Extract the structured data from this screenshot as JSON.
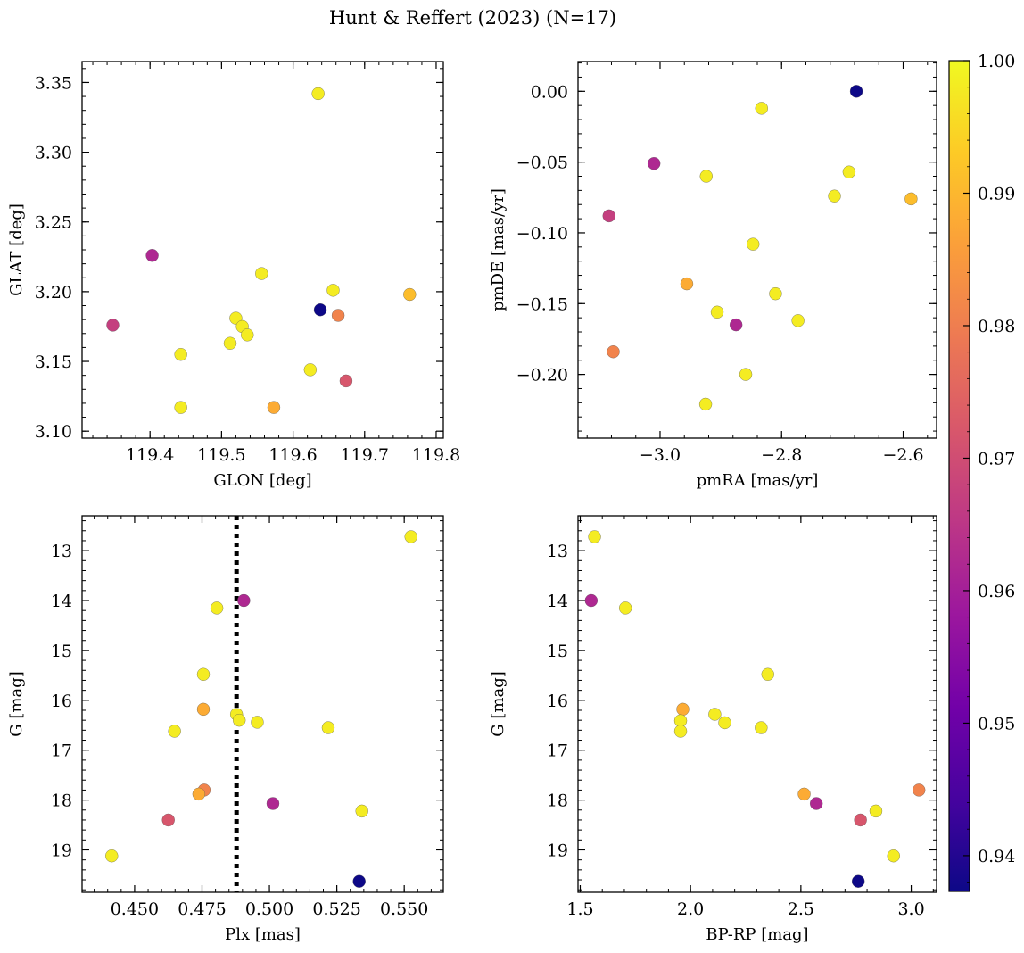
{
  "figure": {
    "title": "Hunt & Reffert (2023) (N=17)"
  },
  "colormap": {
    "name": "plasma",
    "min": 0.9373,
    "max": 1.0,
    "ticks": [
      0.94,
      0.95,
      0.96,
      0.97,
      0.98,
      0.99,
      1.0
    ],
    "tick_labels": [
      "0.94",
      "0.95",
      "0.96",
      "0.97",
      "0.98",
      "0.99",
      "1.00"
    ],
    "stops": [
      "#0d0887",
      "#46039f",
      "#7201a8",
      "#9c179e",
      "#bd3786",
      "#d8576b",
      "#ed7953",
      "#fb9f3a",
      "#fdca26",
      "#f0f921"
    ]
  },
  "chart_data": [
    {
      "type": "scatter",
      "name": "sky-position",
      "xlabel": "GLON [deg]",
      "ylabel": "GLAT [deg]",
      "xlim": [
        119.305,
        119.81
      ],
      "ylim": [
        3.095,
        3.365
      ],
      "y_inverted": false,
      "xticks": [
        119.4,
        119.5,
        119.6,
        119.7,
        119.8
      ],
      "xtick_labels": [
        "119.4",
        "119.5",
        "119.6",
        "119.7",
        "119.8"
      ],
      "yticks": [
        3.1,
        3.15,
        3.2,
        3.25,
        3.3,
        3.35
      ],
      "ytick_labels": [
        "3.10",
        "3.15",
        "3.20",
        "3.25",
        "3.30",
        "3.35"
      ],
      "x_minor_step": 0.02,
      "y_minor_step": 0.01,
      "points": [
        {
          "x": 119.635,
          "y": 3.342,
          "p": 0.998
        },
        {
          "x": 119.403,
          "y": 3.226,
          "p": 0.962
        },
        {
          "x": 119.556,
          "y": 3.213,
          "p": 0.998
        },
        {
          "x": 119.656,
          "y": 3.201,
          "p": 0.998
        },
        {
          "x": 119.763,
          "y": 3.198,
          "p": 0.991
        },
        {
          "x": 119.638,
          "y": 3.187,
          "p": 0.9373
        },
        {
          "x": 119.663,
          "y": 3.183,
          "p": 0.981
        },
        {
          "x": 119.52,
          "y": 3.181,
          "p": 0.998
        },
        {
          "x": 119.348,
          "y": 3.176,
          "p": 0.967
        },
        {
          "x": 119.529,
          "y": 3.175,
          "p": 0.998
        },
        {
          "x": 119.536,
          "y": 3.169,
          "p": 0.998
        },
        {
          "x": 119.512,
          "y": 3.163,
          "p": 0.998
        },
        {
          "x": 119.443,
          "y": 3.155,
          "p": 0.998
        },
        {
          "x": 119.624,
          "y": 3.144,
          "p": 0.998
        },
        {
          "x": 119.674,
          "y": 3.136,
          "p": 0.972
        },
        {
          "x": 119.443,
          "y": 3.117,
          "p": 0.998
        },
        {
          "x": 119.573,
          "y": 3.117,
          "p": 0.988
        }
      ]
    },
    {
      "type": "scatter",
      "name": "proper-motion",
      "xlabel": "pmRA [mas/yr]",
      "ylabel": "pmDE [mas/yr]",
      "xlim": [
        -3.135,
        -2.545
      ],
      "ylim": [
        -0.245,
        0.021
      ],
      "y_inverted": false,
      "xticks": [
        -3.0,
        -2.8,
        -2.6
      ],
      "xtick_labels": [
        "−3.0",
        "−2.8",
        "−2.6"
      ],
      "yticks": [
        0.0,
        -0.05,
        -0.1,
        -0.15,
        -0.2
      ],
      "ytick_labels": [
        "0.00",
        "−0.05",
        "−0.10",
        "−0.15",
        "−0.20"
      ],
      "x_minor_step": 0.04,
      "y_minor_step": 0.01,
      "points": [
        {
          "x": -2.677,
          "y": 0.0,
          "p": 0.9373
        },
        {
          "x": -2.833,
          "y": -0.012,
          "p": 0.998
        },
        {
          "x": -3.01,
          "y": -0.051,
          "p": 0.962
        },
        {
          "x": -2.689,
          "y": -0.057,
          "p": 0.998
        },
        {
          "x": -2.924,
          "y": -0.06,
          "p": 0.998
        },
        {
          "x": -2.713,
          "y": -0.074,
          "p": 0.998
        },
        {
          "x": -2.587,
          "y": -0.076,
          "p": 0.991
        },
        {
          "x": -3.084,
          "y": -0.088,
          "p": 0.967
        },
        {
          "x": -2.847,
          "y": -0.108,
          "p": 0.998
        },
        {
          "x": -2.956,
          "y": -0.136,
          "p": 0.988
        },
        {
          "x": -2.81,
          "y": -0.143,
          "p": 0.998
        },
        {
          "x": -2.906,
          "y": -0.156,
          "p": 0.998
        },
        {
          "x": -2.773,
          "y": -0.162,
          "p": 0.998
        },
        {
          "x": -2.875,
          "y": -0.165,
          "p": 0.962
        },
        {
          "x": -3.077,
          "y": -0.184,
          "p": 0.981
        },
        {
          "x": -2.859,
          "y": -0.2,
          "p": 0.998
        },
        {
          "x": -2.925,
          "y": -0.221,
          "p": 0.998
        }
      ]
    },
    {
      "type": "scatter",
      "name": "parallax-vs-magnitude",
      "xlabel": "Plx [mas]",
      "ylabel": "G [mag]",
      "xlim": [
        0.4305,
        0.5645
      ],
      "ylim": [
        12.3,
        19.85
      ],
      "y_inverted": true,
      "xticks": [
        0.45,
        0.475,
        0.5,
        0.525,
        0.55
      ],
      "xtick_labels": [
        "0.450",
        "0.475",
        "0.500",
        "0.525",
        "0.550"
      ],
      "yticks": [
        13,
        14,
        15,
        16,
        17,
        18,
        19
      ],
      "ytick_labels": [
        "13",
        "14",
        "15",
        "16",
        "17",
        "18",
        "19"
      ],
      "x_minor_step": 0.005,
      "y_minor_step": 0.2,
      "reference_line": {
        "x": 0.4878,
        "style": "dotted",
        "color": "#000000"
      },
      "points": [
        {
          "x": 0.5525,
          "y": 12.72,
          "p": 0.998
        },
        {
          "x": 0.4905,
          "y": 14.0,
          "p": 0.962
        },
        {
          "x": 0.4805,
          "y": 14.15,
          "p": 0.998
        },
        {
          "x": 0.4755,
          "y": 15.48,
          "p": 0.998
        },
        {
          "x": 0.4755,
          "y": 16.18,
          "p": 0.988
        },
        {
          "x": 0.4878,
          "y": 16.28,
          "p": 0.998
        },
        {
          "x": 0.4888,
          "y": 16.4,
          "p": 0.998
        },
        {
          "x": 0.4955,
          "y": 16.44,
          "p": 0.998
        },
        {
          "x": 0.5218,
          "y": 16.55,
          "p": 0.998
        },
        {
          "x": 0.4648,
          "y": 16.62,
          "p": 0.998
        },
        {
          "x": 0.4758,
          "y": 17.8,
          "p": 0.981
        },
        {
          "x": 0.4738,
          "y": 17.88,
          "p": 0.988
        },
        {
          "x": 0.5013,
          "y": 18.07,
          "p": 0.962
        },
        {
          "x": 0.5343,
          "y": 18.22,
          "p": 0.998
        },
        {
          "x": 0.4625,
          "y": 18.4,
          "p": 0.972
        },
        {
          "x": 0.4415,
          "y": 19.12,
          "p": 0.998
        },
        {
          "x": 0.5333,
          "y": 19.63,
          "p": 0.9373
        }
      ]
    },
    {
      "type": "scatter",
      "name": "color-magnitude",
      "xlabel": "BP-RP [mag]",
      "ylabel": "G [mag]",
      "xlim": [
        1.49,
        3.115
      ],
      "ylim": [
        12.3,
        19.85
      ],
      "y_inverted": true,
      "xticks": [
        1.5,
        2.0,
        2.5,
        3.0
      ],
      "xtick_labels": [
        "1.5",
        "2.0",
        "2.5",
        "3.0"
      ],
      "yticks": [
        13,
        14,
        15,
        16,
        17,
        18,
        19
      ],
      "ytick_labels": [
        "13",
        "14",
        "15",
        "16",
        "17",
        "18",
        "19"
      ],
      "x_minor_step": 0.1,
      "y_minor_step": 0.2,
      "points": [
        {
          "x": 1.565,
          "y": 12.72,
          "p": 0.998
        },
        {
          "x": 1.55,
          "y": 14.0,
          "p": 0.962
        },
        {
          "x": 1.705,
          "y": 14.15,
          "p": 0.998
        },
        {
          "x": 2.35,
          "y": 15.48,
          "p": 0.998
        },
        {
          "x": 1.965,
          "y": 16.18,
          "p": 0.988
        },
        {
          "x": 2.11,
          "y": 16.28,
          "p": 0.998
        },
        {
          "x": 1.955,
          "y": 16.41,
          "p": 0.998
        },
        {
          "x": 2.155,
          "y": 16.45,
          "p": 0.998
        },
        {
          "x": 2.32,
          "y": 16.55,
          "p": 0.998
        },
        {
          "x": 1.955,
          "y": 16.62,
          "p": 0.998
        },
        {
          "x": 3.035,
          "y": 17.8,
          "p": 0.981
        },
        {
          "x": 2.515,
          "y": 17.88,
          "p": 0.988
        },
        {
          "x": 2.57,
          "y": 18.07,
          "p": 0.962
        },
        {
          "x": 2.84,
          "y": 18.22,
          "p": 0.998
        },
        {
          "x": 2.77,
          "y": 18.4,
          "p": 0.972
        },
        {
          "x": 2.92,
          "y": 19.12,
          "p": 0.998
        },
        {
          "x": 2.76,
          "y": 19.63,
          "p": 0.9373
        }
      ]
    }
  ]
}
